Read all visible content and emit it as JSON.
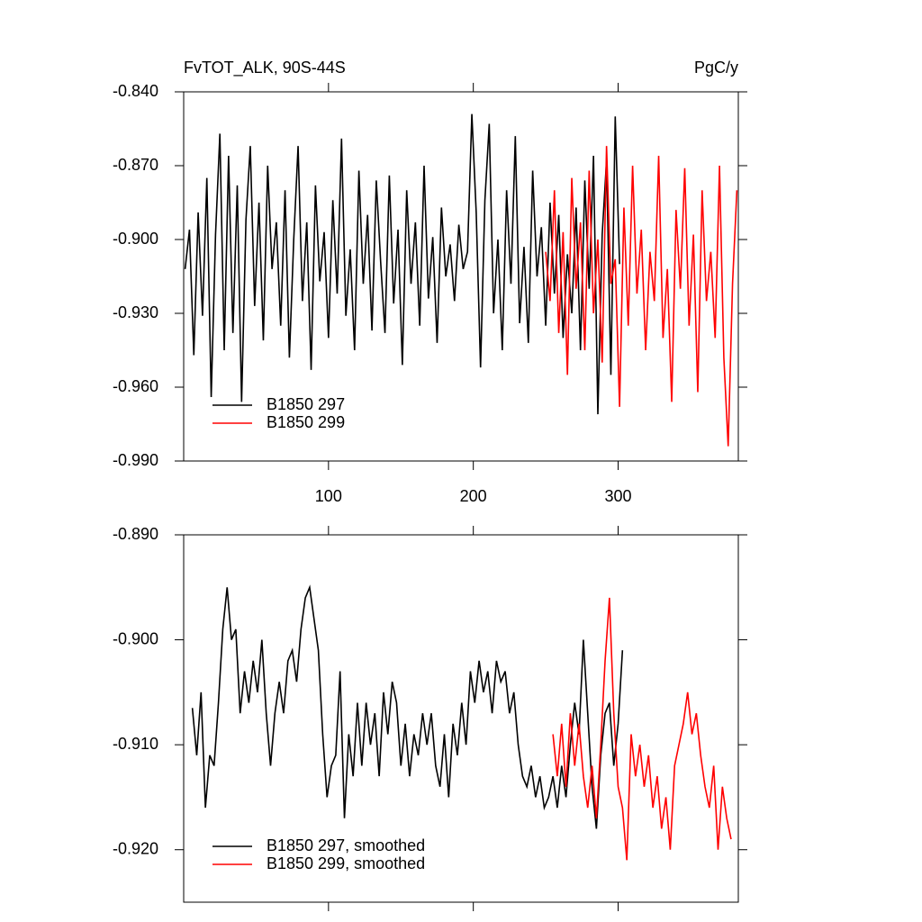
{
  "chart_data": [
    {
      "type": "line",
      "title": "FvTOT_ALK, 90S-44S",
      "units": "PgC/y",
      "xlim": [
        0,
        383
      ],
      "xticks": [
        100,
        200,
        300
      ],
      "show_xtick_labels": true,
      "ylim": [
        -0.99,
        -0.84
      ],
      "yticks": [
        {
          "value": -0.84,
          "label": "-0.840"
        },
        {
          "value": -0.87,
          "label": "-0.870"
        },
        {
          "value": -0.9,
          "label": "-0.900"
        },
        {
          "value": -0.93,
          "label": "-0.930"
        },
        {
          "value": -0.96,
          "label": "-0.960"
        },
        {
          "value": -0.99,
          "label": "-0.990"
        }
      ],
      "legend": "lower left",
      "series": [
        {
          "name": "B1850 297",
          "color": "#000000",
          "x": [
            1,
            4,
            7,
            10,
            13,
            16,
            19,
            22,
            25,
            28,
            31,
            34,
            37,
            40,
            43,
            46,
            49,
            52,
            55,
            58,
            61,
            64,
            67,
            70,
            73,
            76,
            79,
            82,
            85,
            88,
            91,
            94,
            97,
            100,
            103,
            106,
            109,
            112,
            115,
            118,
            121,
            124,
            127,
            130,
            133,
            136,
            139,
            142,
            145,
            148,
            151,
            154,
            157,
            160,
            163,
            166,
            169,
            172,
            175,
            178,
            181,
            184,
            187,
            190,
            193,
            196,
            199,
            202,
            205,
            208,
            211,
            214,
            217,
            220,
            223,
            226,
            229,
            232,
            235,
            238,
            241,
            244,
            247,
            250,
            253,
            256,
            259,
            262,
            265,
            268,
            271,
            274,
            277,
            280,
            283,
            286,
            289,
            292,
            295,
            298,
            301
          ],
          "values": [
            -0.912,
            -0.896,
            -0.947,
            -0.889,
            -0.931,
            -0.875,
            -0.964,
            -0.898,
            -0.857,
            -0.945,
            -0.866,
            -0.938,
            -0.878,
            -0.966,
            -0.892,
            -0.862,
            -0.927,
            -0.885,
            -0.941,
            -0.87,
            -0.912,
            -0.893,
            -0.935,
            -0.88,
            -0.948,
            -0.9,
            -0.862,
            -0.925,
            -0.893,
            -0.953,
            -0.878,
            -0.917,
            -0.897,
            -0.94,
            -0.884,
            -0.922,
            -0.859,
            -0.931,
            -0.904,
            -0.945,
            -0.872,
            -0.918,
            -0.89,
            -0.937,
            -0.876,
            -0.909,
            -0.938,
            -0.874,
            -0.926,
            -0.896,
            -0.951,
            -0.88,
            -0.918,
            -0.893,
            -0.935,
            -0.87,
            -0.924,
            -0.899,
            -0.942,
            -0.887,
            -0.915,
            -0.902,
            -0.925,
            -0.894,
            -0.912,
            -0.905,
            -0.849,
            -0.889,
            -0.952,
            -0.884,
            -0.853,
            -0.93,
            -0.9,
            -0.945,
            -0.88,
            -0.918,
            -0.858,
            -0.934,
            -0.903,
            -0.942,
            -0.872,
            -0.915,
            -0.895,
            -0.935,
            -0.885,
            -0.922,
            -0.89,
            -0.94,
            -0.906,
            -0.93,
            -0.887,
            -0.945,
            -0.876,
            -0.92,
            -0.866,
            -0.971,
            -0.898,
            -0.868,
            -0.955,
            -0.85,
            -0.91
          ]
        },
        {
          "name": "B1850 299",
          "color": "#ff0000",
          "x": [
            250,
            253,
            256,
            259,
            262,
            265,
            268,
            271,
            274,
            277,
            280,
            283,
            286,
            289,
            292,
            295,
            298,
            301,
            304,
            307,
            310,
            313,
            316,
            319,
            322,
            325,
            328,
            331,
            334,
            337,
            340,
            343,
            346,
            349,
            352,
            355,
            358,
            361,
            364,
            367,
            370,
            373,
            376,
            379,
            382
          ],
          "values": [
            -0.905,
            -0.925,
            -0.88,
            -0.938,
            -0.897,
            -0.955,
            -0.875,
            -0.92,
            -0.893,
            -0.945,
            -0.872,
            -0.93,
            -0.9,
            -0.95,
            -0.862,
            -0.918,
            -0.908,
            -0.968,
            -0.887,
            -0.935,
            -0.87,
            -0.922,
            -0.896,
            -0.945,
            -0.905,
            -0.925,
            -0.866,
            -0.94,
            -0.912,
            -0.966,
            -0.888,
            -0.92,
            -0.871,
            -0.935,
            -0.898,
            -0.962,
            -0.88,
            -0.925,
            -0.905,
            -0.94,
            -0.87,
            -0.948,
            -0.984,
            -0.918,
            -0.88
          ]
        }
      ]
    },
    {
      "type": "line",
      "xlim": [
        0,
        383
      ],
      "xticks": [
        100,
        200,
        300
      ],
      "show_xtick_labels": false,
      "ylim": [
        -0.925,
        -0.89
      ],
      "yticks": [
        {
          "value": -0.89,
          "label": "-0.890"
        },
        {
          "value": -0.9,
          "label": "-0.900"
        },
        {
          "value": -0.91,
          "label": "-0.910"
        },
        {
          "value": -0.92,
          "label": "-0.920"
        }
      ],
      "legend": "lower left",
      "series": [
        {
          "name": "B1850 297, smoothed",
          "color": "#000000",
          "x": [
            6,
            9,
            12,
            15,
            18,
            21,
            24,
            27,
            30,
            33,
            36,
            39,
            42,
            45,
            48,
            51,
            54,
            57,
            60,
            63,
            66,
            69,
            72,
            75,
            78,
            81,
            84,
            87,
            90,
            93,
            96,
            99,
            102,
            105,
            108,
            111,
            114,
            117,
            120,
            123,
            126,
            129,
            132,
            135,
            138,
            141,
            144,
            147,
            150,
            153,
            156,
            159,
            162,
            165,
            168,
            171,
            174,
            177,
            180,
            183,
            186,
            189,
            192,
            195,
            198,
            201,
            204,
            207,
            210,
            213,
            216,
            219,
            222,
            225,
            228,
            231,
            234,
            237,
            240,
            243,
            246,
            249,
            252,
            255,
            258,
            261,
            264,
            267,
            270,
            273,
            276,
            279,
            282,
            285,
            288,
            291,
            294,
            297,
            300,
            303
          ],
          "values": [
            -0.9065,
            -0.911,
            -0.905,
            -0.916,
            -0.911,
            -0.912,
            -0.906,
            -0.899,
            -0.895,
            -0.9,
            -0.899,
            -0.907,
            -0.903,
            -0.906,
            -0.902,
            -0.905,
            -0.9,
            -0.907,
            -0.912,
            -0.907,
            -0.904,
            -0.907,
            -0.902,
            -0.901,
            -0.904,
            -0.899,
            -0.896,
            -0.895,
            -0.898,
            -0.901,
            -0.909,
            -0.915,
            -0.912,
            -0.911,
            -0.903,
            -0.917,
            -0.909,
            -0.913,
            -0.906,
            -0.912,
            -0.906,
            -0.91,
            -0.907,
            -0.913,
            -0.905,
            -0.909,
            -0.904,
            -0.906,
            -0.912,
            -0.908,
            -0.913,
            -0.909,
            -0.911,
            -0.907,
            -0.91,
            -0.907,
            -0.912,
            -0.914,
            -0.909,
            -0.915,
            -0.908,
            -0.911,
            -0.906,
            -0.91,
            -0.903,
            -0.906,
            -0.902,
            -0.905,
            -0.903,
            -0.907,
            -0.902,
            -0.904,
            -0.903,
            -0.907,
            -0.905,
            -0.91,
            -0.913,
            -0.914,
            -0.912,
            -0.915,
            -0.913,
            -0.916,
            -0.915,
            -0.913,
            -0.916,
            -0.912,
            -0.915,
            -0.91,
            -0.906,
            -0.909,
            -0.9,
            -0.907,
            -0.914,
            -0.918,
            -0.911,
            -0.907,
            -0.906,
            -0.912,
            -0.908,
            -0.901
          ]
        },
        {
          "name": "B1850 299, smoothed",
          "color": "#ff0000",
          "x": [
            255,
            258,
            261,
            264,
            267,
            270,
            273,
            276,
            279,
            282,
            285,
            288,
            291,
            294,
            297,
            300,
            303,
            306,
            309,
            312,
            315,
            318,
            321,
            324,
            327,
            330,
            333,
            336,
            339,
            342,
            345,
            348,
            351,
            354,
            357,
            360,
            363,
            366,
            369,
            372,
            375,
            378
          ],
          "values": [
            -0.909,
            -0.913,
            -0.908,
            -0.914,
            -0.907,
            -0.912,
            -0.908,
            -0.913,
            -0.916,
            -0.912,
            -0.917,
            -0.91,
            -0.902,
            -0.896,
            -0.907,
            -0.914,
            -0.916,
            -0.921,
            -0.909,
            -0.913,
            -0.91,
            -0.914,
            -0.911,
            -0.916,
            -0.913,
            -0.918,
            -0.915,
            -0.92,
            -0.912,
            -0.91,
            -0.908,
            -0.905,
            -0.909,
            -0.907,
            -0.911,
            -0.914,
            -0.916,
            -0.912,
            -0.92,
            -0.914,
            -0.917,
            -0.919
          ]
        }
      ]
    }
  ]
}
